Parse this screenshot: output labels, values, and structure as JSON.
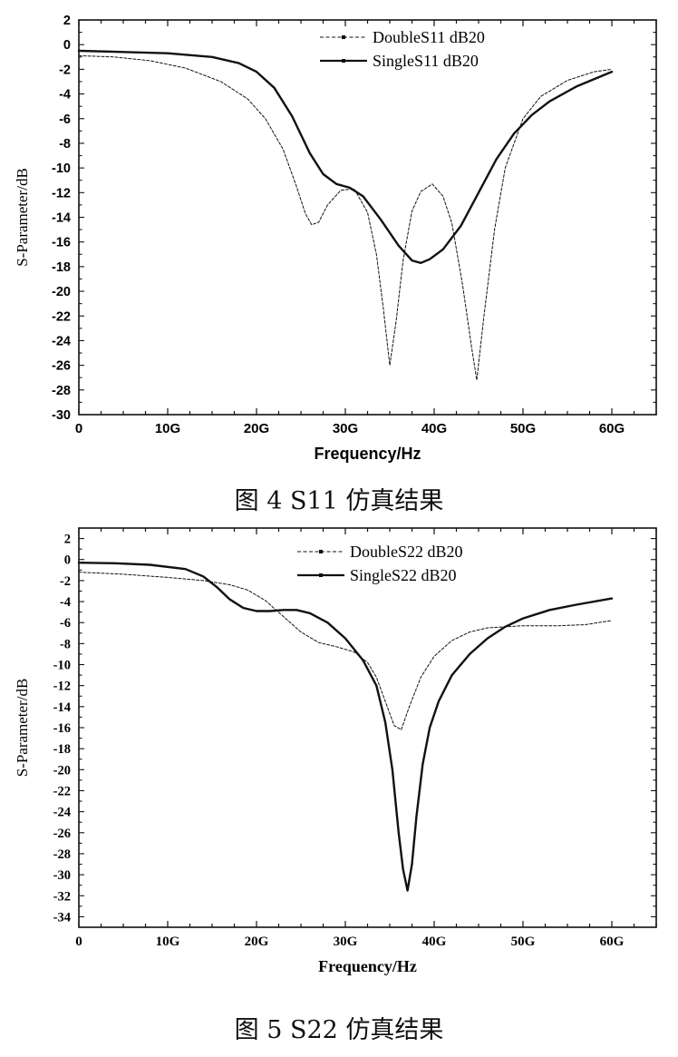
{
  "figures": [
    {
      "caption": "图 4 S11 仿真结果",
      "chart_data": {
        "type": "line",
        "title": "",
        "xlabel": "Frequency/Hz",
        "ylabel": "S-Parameter/dB",
        "xlim": [
          0,
          65
        ],
        "ylim": [
          -30,
          2
        ],
        "x_ticks": [
          {
            "value": 0,
            "label": "0"
          },
          {
            "value": 10,
            "label": "10G"
          },
          {
            "value": 20,
            "label": "20G"
          },
          {
            "value": 30,
            "label": "30G"
          },
          {
            "value": 40,
            "label": "40G"
          },
          {
            "value": 50,
            "label": "50G"
          },
          {
            "value": 60,
            "label": "60G"
          }
        ],
        "y_ticks": [
          2,
          0,
          -2,
          -4,
          -6,
          -8,
          -10,
          -12,
          -14,
          -16,
          -18,
          -20,
          -22,
          -24,
          -26,
          -28,
          -30
        ],
        "legend_position": "top-right",
        "grid": false,
        "series": [
          {
            "name": "DoubleS11 dB20",
            "style": "dashed",
            "x": [
              0,
              4,
              8,
              12,
              16,
              19,
              21,
              23,
              24.5,
              25.5,
              26.2,
              27,
              28,
              29.5,
              31,
              32.5,
              33.5,
              34.3,
              35,
              35.7,
              36.5,
              37.5,
              38.5,
              39.8,
              41,
              42,
              43.2,
              44.2,
              44.8,
              45.6,
              46.8,
              48,
              50,
              52,
              55,
              58,
              60
            ],
            "values": [
              -0.9,
              -1.0,
              -1.3,
              -1.9,
              -3.0,
              -4.4,
              -6.0,
              -8.5,
              -11.5,
              -13.7,
              -14.6,
              -14.4,
              -13.0,
              -11.8,
              -11.7,
              -13.6,
              -17.0,
              -21.5,
              -26.0,
              -22.5,
              -17.5,
              -13.5,
              -11.9,
              -11.3,
              -12.3,
              -14.5,
              -19.5,
              -24.5,
              -27.2,
              -22.0,
              -15.0,
              -10.0,
              -6.0,
              -4.2,
              -2.9,
              -2.2,
              -2.0
            ]
          },
          {
            "name": "SingleS11 dB20",
            "style": "solid",
            "x": [
              0,
              5,
              10,
              15,
              18,
              20,
              22,
              24,
              26,
              27.5,
              29,
              30.5,
              32,
              34,
              36,
              37.5,
              38.5,
              39.5,
              41,
              43,
              45,
              47,
              49,
              51,
              53,
              56,
              60
            ],
            "values": [
              -0.5,
              -0.6,
              -0.7,
              -1.0,
              -1.5,
              -2.2,
              -3.5,
              -5.8,
              -8.8,
              -10.5,
              -11.3,
              -11.6,
              -12.3,
              -14.2,
              -16.3,
              -17.5,
              -17.7,
              -17.4,
              -16.6,
              -14.7,
              -12.0,
              -9.3,
              -7.2,
              -5.7,
              -4.6,
              -3.4,
              -2.2
            ]
          }
        ]
      }
    },
    {
      "caption": "图 5 S22 仿真结果",
      "chart_data": {
        "type": "line",
        "title": "",
        "xlabel": "Frequency/Hz",
        "ylabel": "S-Parameter/dB",
        "xlim": [
          0,
          65
        ],
        "ylim": [
          -35,
          3
        ],
        "x_ticks": [
          {
            "value": 0,
            "label": "0"
          },
          {
            "value": 10,
            "label": "10G"
          },
          {
            "value": 20,
            "label": "20G"
          },
          {
            "value": 30,
            "label": "30G"
          },
          {
            "value": 40,
            "label": "40G"
          },
          {
            "value": 50,
            "label": "50G"
          },
          {
            "value": 60,
            "label": "60G"
          }
        ],
        "y_ticks": [
          2,
          0,
          -2,
          -4,
          -6,
          -8,
          -10,
          -12,
          -14,
          -16,
          -18,
          -20,
          -22,
          -24,
          -26,
          -28,
          -30,
          -32,
          -34
        ],
        "legend_position": "top-right",
        "grid": false,
        "series": [
          {
            "name": "DoubleS22 dB20",
            "style": "dashed",
            "x": [
              0,
              5,
              10,
              14,
              17,
              19,
              21,
              23,
              25,
              27,
              29,
              31,
              32.5,
              33.5,
              34.5,
              35.5,
              36.3,
              37.2,
              38.5,
              40,
              42,
              44,
              46,
              48,
              50,
              54,
              57,
              60
            ],
            "values": [
              -1.2,
              -1.4,
              -1.7,
              -2.0,
              -2.4,
              -2.9,
              -3.9,
              -5.4,
              -6.9,
              -7.9,
              -8.3,
              -8.8,
              -9.8,
              -11.2,
              -13.5,
              -15.8,
              -16.2,
              -14.0,
              -11.2,
              -9.2,
              -7.7,
              -6.9,
              -6.5,
              -6.4,
              -6.3,
              -6.3,
              -6.2,
              -5.8
            ]
          },
          {
            "name": "SingleS22 dB20",
            "style": "solid",
            "x": [
              0,
              4,
              8,
              12,
              14,
              15.5,
              17,
              18.5,
              20,
              21.5,
              23,
              24.5,
              26,
              28,
              30,
              32,
              33.5,
              34.5,
              35.3,
              36,
              36.5,
              37,
              37.5,
              38,
              38.7,
              39.5,
              40.5,
              42,
              44,
              46,
              48,
              50,
              53,
              56,
              60
            ],
            "values": [
              -0.3,
              -0.35,
              -0.5,
              -0.9,
              -1.6,
              -2.6,
              -3.8,
              -4.6,
              -4.9,
              -4.9,
              -4.8,
              -4.8,
              -5.1,
              -6.0,
              -7.5,
              -9.6,
              -12.0,
              -15.5,
              -20.0,
              -26.0,
              -29.5,
              -31.5,
              -29.0,
              -24.5,
              -19.5,
              -16.0,
              -13.5,
              -11.0,
              -9.0,
              -7.5,
              -6.4,
              -5.6,
              -4.8,
              -4.3,
              -3.7
            ]
          }
        ]
      }
    }
  ]
}
